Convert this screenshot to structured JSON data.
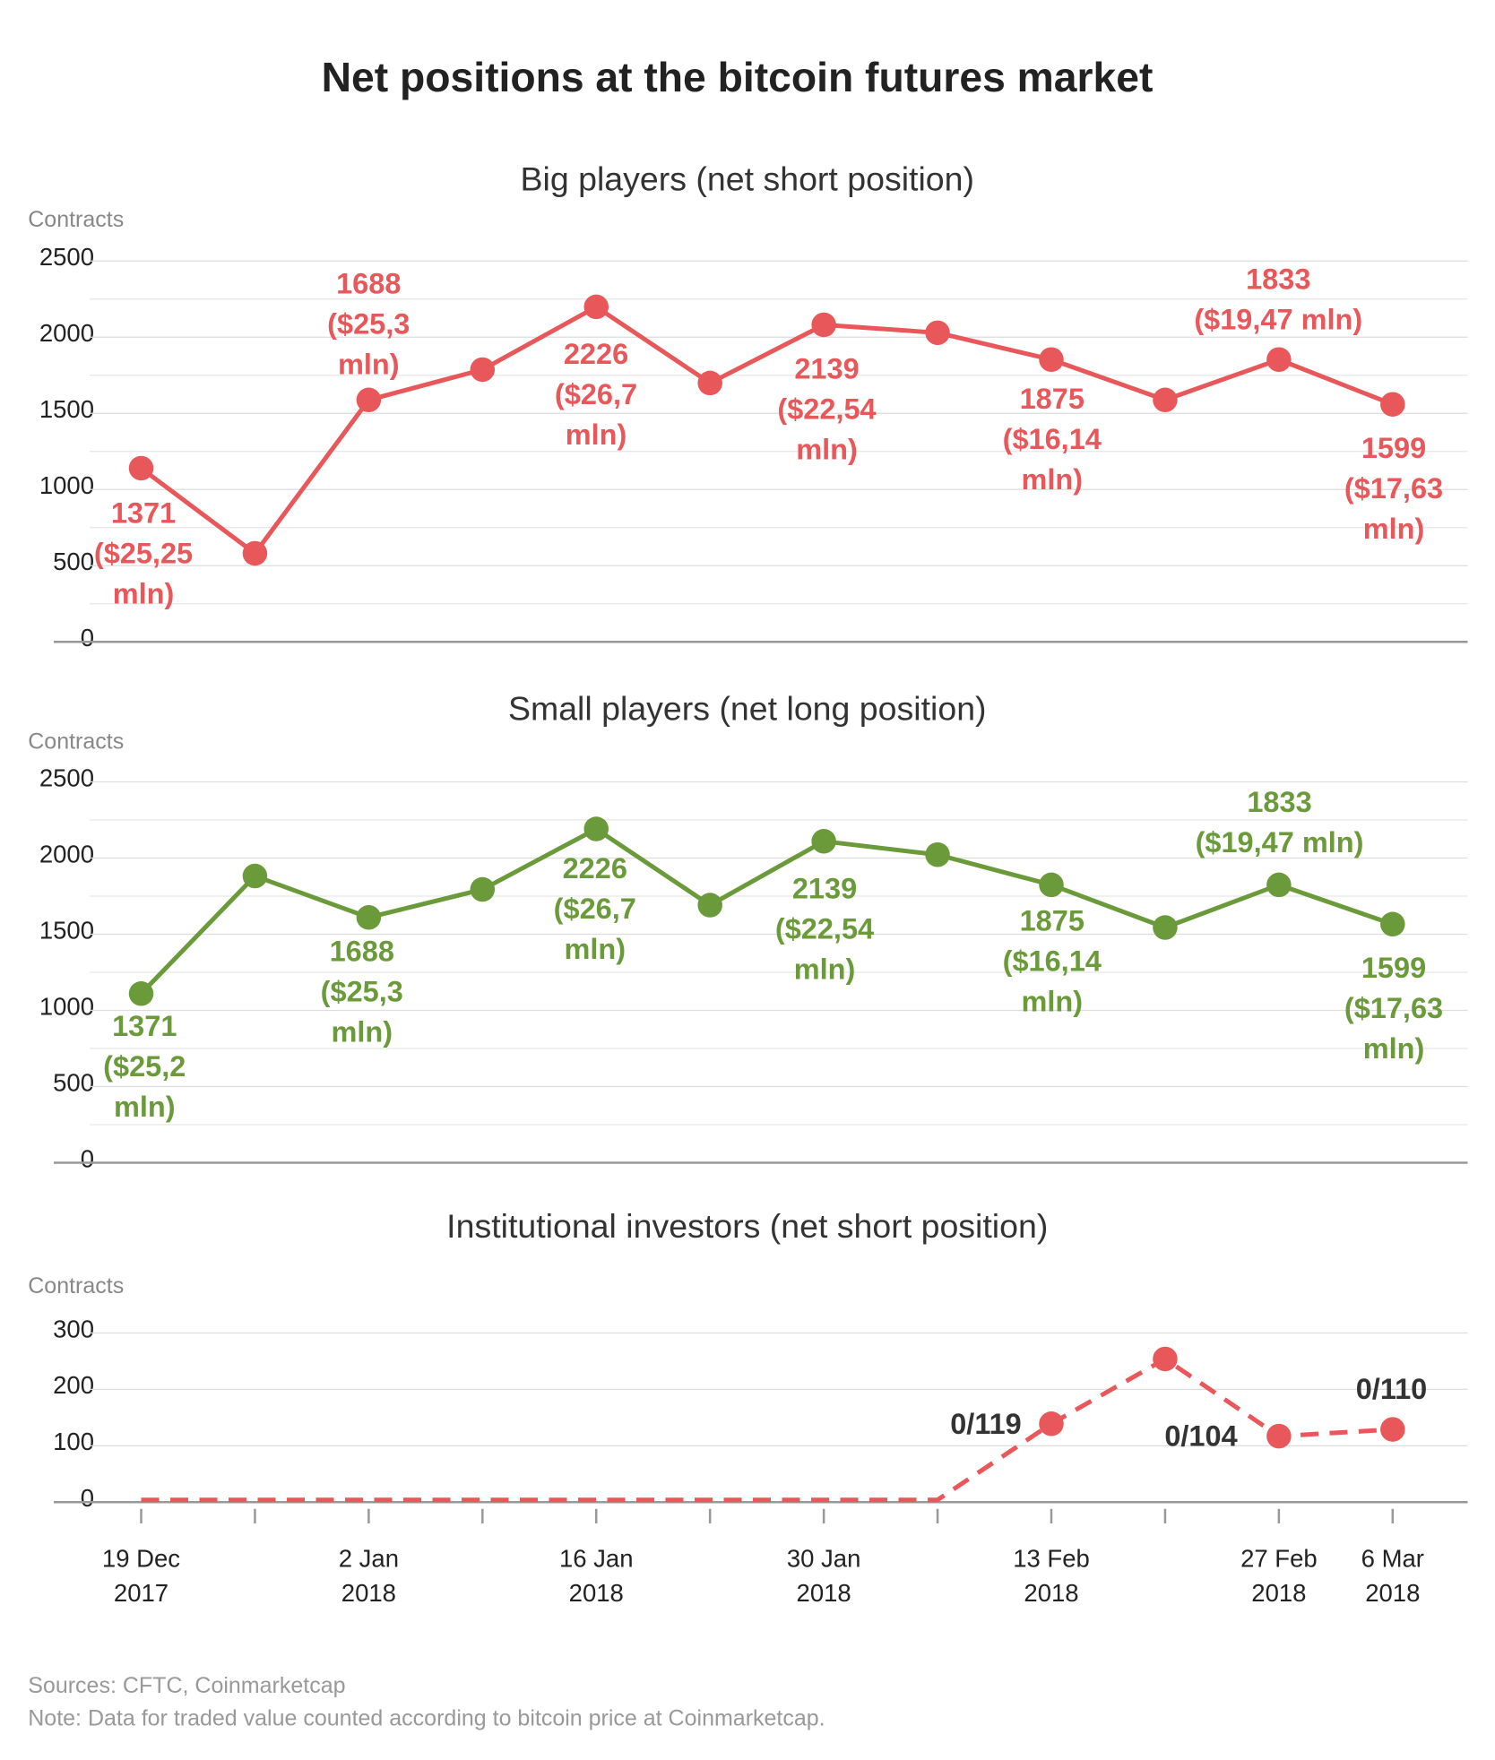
{
  "title": "Net positions at the bitcoin futures market",
  "sources": "Sources: CFTC, Coinmarketcap",
  "note": "Note: Data for traded value counted according to bitcoin price at Coinmarketcap.",
  "chart_data": [
    {
      "type": "line",
      "title": "Big players (net short position)",
      "y_label": "Contracts",
      "series": [
        {
          "name": "Big players",
          "color": "#e8575a",
          "dashed": false,
          "values": [
            1140,
            581,
            1588,
            1787,
            2199,
            1699,
            2081,
            2029,
            1853,
            1588,
            1853,
            1559
          ]
        }
      ],
      "annotations": [
        [
          "1371",
          "($25,25",
          "mln)"
        ],
        [
          "1688",
          "($25,3",
          "mln)"
        ],
        [
          "2226",
          "($26,7",
          "mln)"
        ],
        [
          "2139",
          "($22,54",
          "mln)"
        ],
        [
          "1875",
          "($16,14",
          "mln)"
        ],
        [
          "1833",
          "($19,47 mln)"
        ],
        [
          "1599",
          "($17,63",
          "mln)"
        ]
      ],
      "ylim": [
        0,
        2500
      ],
      "yticks": [
        0,
        500,
        1000,
        1500,
        2000,
        2500
      ],
      "minor_yticks": [
        250,
        750,
        1250,
        1750,
        2250
      ],
      "grid": true
    },
    {
      "type": "line",
      "title": "Small players (net long position)",
      "y_label": "Contracts",
      "series": [
        {
          "name": "Small players",
          "color": "#6a9a3a",
          "dashed": false,
          "values": [
            1110,
            1882,
            1610,
            1794,
            2191,
            1691,
            2110,
            2022,
            1824,
            1544,
            1824,
            1566
          ]
        }
      ],
      "annotations": [
        [
          "1371",
          "($25,2",
          "mln)"
        ],
        [
          "1688",
          "($25,3",
          "mln)"
        ],
        [
          "2226",
          "($26,7",
          "mln)"
        ],
        [
          "2139",
          "($22,54",
          "mln)"
        ],
        [
          "1875",
          "($16,14",
          "mln)"
        ],
        [
          "1833",
          "($19,47 mln)"
        ],
        [
          "1599",
          "($17,63",
          "mln)"
        ]
      ],
      "ylim": [
        0,
        2500
      ],
      "yticks": [
        0,
        500,
        1000,
        1500,
        2000,
        2500
      ],
      "minor_yticks": [
        250,
        750,
        1250,
        1750,
        2250
      ],
      "grid": true
    },
    {
      "type": "line",
      "title": "Institutional investors (net short position)",
      "y_label": "Contracts",
      "categories": [
        "19 Dec 2017",
        null,
        "2 Jan 2018",
        null,
        "16 Jan 2018",
        null,
        "30 Jan 2018",
        null,
        "13 Feb 2018",
        null,
        "27 Feb 2018",
        "6 Mar 2018"
      ],
      "series": [
        {
          "name": "Institutional investors",
          "color": "#e8575a",
          "dashed": true,
          "values": [
            4,
            4,
            4,
            4,
            4,
            4,
            4,
            4,
            139,
            254,
            117,
            129
          ],
          "markers": [
            false,
            false,
            false,
            false,
            false,
            false,
            false,
            false,
            true,
            true,
            true,
            true
          ]
        }
      ],
      "annotations": [
        [
          "0/119"
        ],
        [
          "0/104"
        ],
        [
          "0/110"
        ]
      ],
      "ylim": [
        0,
        300
      ],
      "yticks": [
        0,
        100,
        200,
        300
      ],
      "grid": true
    }
  ]
}
